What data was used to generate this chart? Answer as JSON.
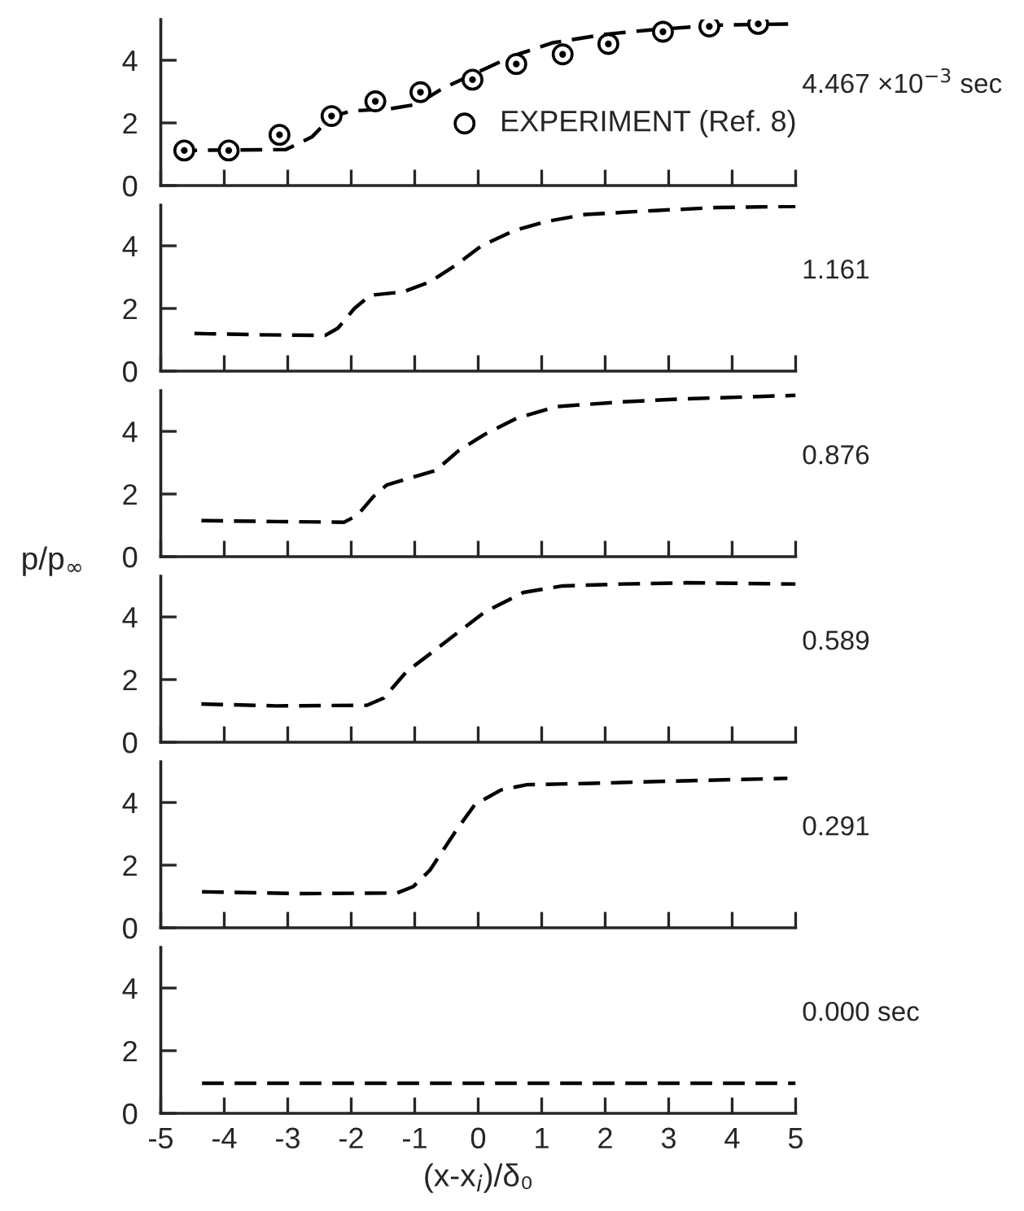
{
  "chart_data": [
    {
      "type": "line",
      "xlim": [
        -5,
        5
      ],
      "ylim": [
        0,
        5.3
      ],
      "xticks": [
        -5,
        -4,
        -3,
        -2,
        -1,
        0,
        1,
        2,
        3,
        4,
        5
      ],
      "yticks": [
        0,
        2,
        4
      ],
      "tick_labels": "y",
      "legend": "bottom right",
      "annotations": [
        "4.467 ×10$^{−3}$ sec"
      ],
      "series": [
        {
          "color": "#000000",
          "line_style": "dashed",
          "marker": "none",
          "x": [
            -4.77,
            -3.03,
            -2.62,
            -2.31,
            -2.0,
            -1.39,
            -0.97,
            -0.56,
            -0.05,
            0.56,
            1.18,
            2.0,
            2.72,
            3.75,
            4.93
          ],
          "values": [
            1.12,
            1.15,
            1.55,
            2.2,
            2.38,
            2.45,
            2.59,
            3.1,
            3.58,
            4.15,
            4.56,
            4.83,
            4.97,
            5.12,
            5.16
          ]
        },
        {
          "type": "scatter",
          "name": "EXPERIMENT (Ref. 8)",
          "color": "#000000",
          "marker": "circle",
          "x": [
            -4.63,
            -3.93,
            -3.13,
            -2.31,
            -1.62,
            -0.91,
            -0.09,
            0.6,
            1.33,
            2.05,
            2.91,
            3.64,
            4.41
          ],
          "values": [
            1.12,
            1.12,
            1.62,
            2.22,
            2.69,
            2.98,
            3.38,
            3.88,
            4.19,
            4.52,
            4.91,
            5.08,
            5.16
          ]
        }
      ]
    },
    {
      "type": "line",
      "xlim": [
        -5,
        5
      ],
      "ylim": [
        0,
        5.3
      ],
      "xticks": [
        -5,
        -4,
        -3,
        -2,
        -1,
        0,
        1,
        2,
        3,
        4,
        5
      ],
      "yticks": [
        0,
        2,
        4
      ],
      "tick_labels": "y",
      "annotations": [
        "1.161"
      ],
      "series": [
        {
          "color": "#000000",
          "line_style": "dashed",
          "marker": "none",
          "x": [
            -4.47,
            -3.44,
            -2.41,
            -2.21,
            -1.95,
            -1.7,
            -1.18,
            -0.77,
            -0.36,
            0.05,
            0.56,
            1.08,
            1.69,
            2.72,
            3.75,
            5.0
          ],
          "values": [
            1.2,
            1.16,
            1.14,
            1.37,
            2.0,
            2.42,
            2.53,
            2.84,
            3.37,
            4.0,
            4.48,
            4.78,
            5.0,
            5.12,
            5.22,
            5.26
          ]
        }
      ]
    },
    {
      "type": "line",
      "xlim": [
        -5,
        5
      ],
      "ylim": [
        0,
        5.3
      ],
      "xticks": [
        -5,
        -4,
        -3,
        -2,
        -1,
        0,
        1,
        2,
        3,
        4,
        5
      ],
      "yticks": [
        0,
        2,
        4
      ],
      "tick_labels": "y",
      "annotations": [
        "0.876"
      ],
      "series": [
        {
          "color": "#000000",
          "line_style": "dashed",
          "marker": "none",
          "x": [
            -4.36,
            -3.18,
            -2.11,
            -1.9,
            -1.65,
            -1.44,
            -1.03,
            -0.67,
            -0.31,
            0.1,
            0.61,
            1.23,
            2.25,
            3.28,
            5.0
          ],
          "values": [
            1.15,
            1.12,
            1.1,
            1.33,
            1.92,
            2.29,
            2.54,
            2.75,
            3.38,
            3.9,
            4.42,
            4.79,
            4.94,
            5.04,
            5.15
          ]
        }
      ]
    },
    {
      "type": "line",
      "xlim": [
        -5,
        5
      ],
      "ylim": [
        0,
        5.3
      ],
      "xticks": [
        -5,
        -4,
        -3,
        -2,
        -1,
        0,
        1,
        2,
        3,
        4,
        5
      ],
      "yticks": [
        0,
        2,
        4
      ],
      "tick_labels": "y",
      "ylabel": "p/p$_{∞}$",
      "annotations": [
        "0.589"
      ],
      "series": [
        {
          "color": "#000000",
          "line_style": "dashed",
          "marker": "none",
          "x": [
            -4.36,
            -3.18,
            -1.75,
            -1.49,
            -1.13,
            -0.72,
            -0.31,
            0.1,
            0.71,
            1.33,
            2.25,
            3.28,
            5.0
          ],
          "values": [
            1.22,
            1.16,
            1.18,
            1.41,
            2.25,
            2.88,
            3.52,
            4.15,
            4.78,
            4.99,
            5.05,
            5.09,
            5.05
          ]
        }
      ]
    },
    {
      "type": "line",
      "xlim": [
        -5,
        5
      ],
      "ylim": [
        0,
        5.3
      ],
      "xticks": [
        -5,
        -4,
        -3,
        -2,
        -1,
        0,
        1,
        2,
        3,
        4,
        5
      ],
      "yticks": [
        0,
        2,
        4
      ],
      "tick_labels": "y",
      "annotations": [
        "0.291"
      ],
      "series": [
        {
          "color": "#000000",
          "line_style": "dashed",
          "marker": "none",
          "x": [
            -4.35,
            -2.82,
            -1.28,
            -1.02,
            -0.76,
            -0.35,
            -0.05,
            0.36,
            0.77,
            1.8,
            2.82,
            4.87
          ],
          "values": [
            1.15,
            1.09,
            1.11,
            1.32,
            1.84,
            3.1,
            3.94,
            4.4,
            4.57,
            4.61,
            4.67,
            4.77
          ]
        }
      ]
    },
    {
      "type": "line",
      "xlim": [
        -5,
        5
      ],
      "ylim": [
        0,
        5.3
      ],
      "xticks": [
        -5,
        -4,
        -3,
        -2,
        -1,
        0,
        1,
        2,
        3,
        4,
        5
      ],
      "yticks": [
        0,
        2,
        4
      ],
      "xlabel": "(x-x$_{i}$)/δ₀",
      "annotations": [
        "0.000 sec"
      ],
      "series": [
        {
          "color": "#000000",
          "line_style": "dashed",
          "marker": "none",
          "x": [
            -4.35,
            5.0
          ],
          "values": [
            0.96,
            0.96
          ]
        }
      ]
    }
  ]
}
